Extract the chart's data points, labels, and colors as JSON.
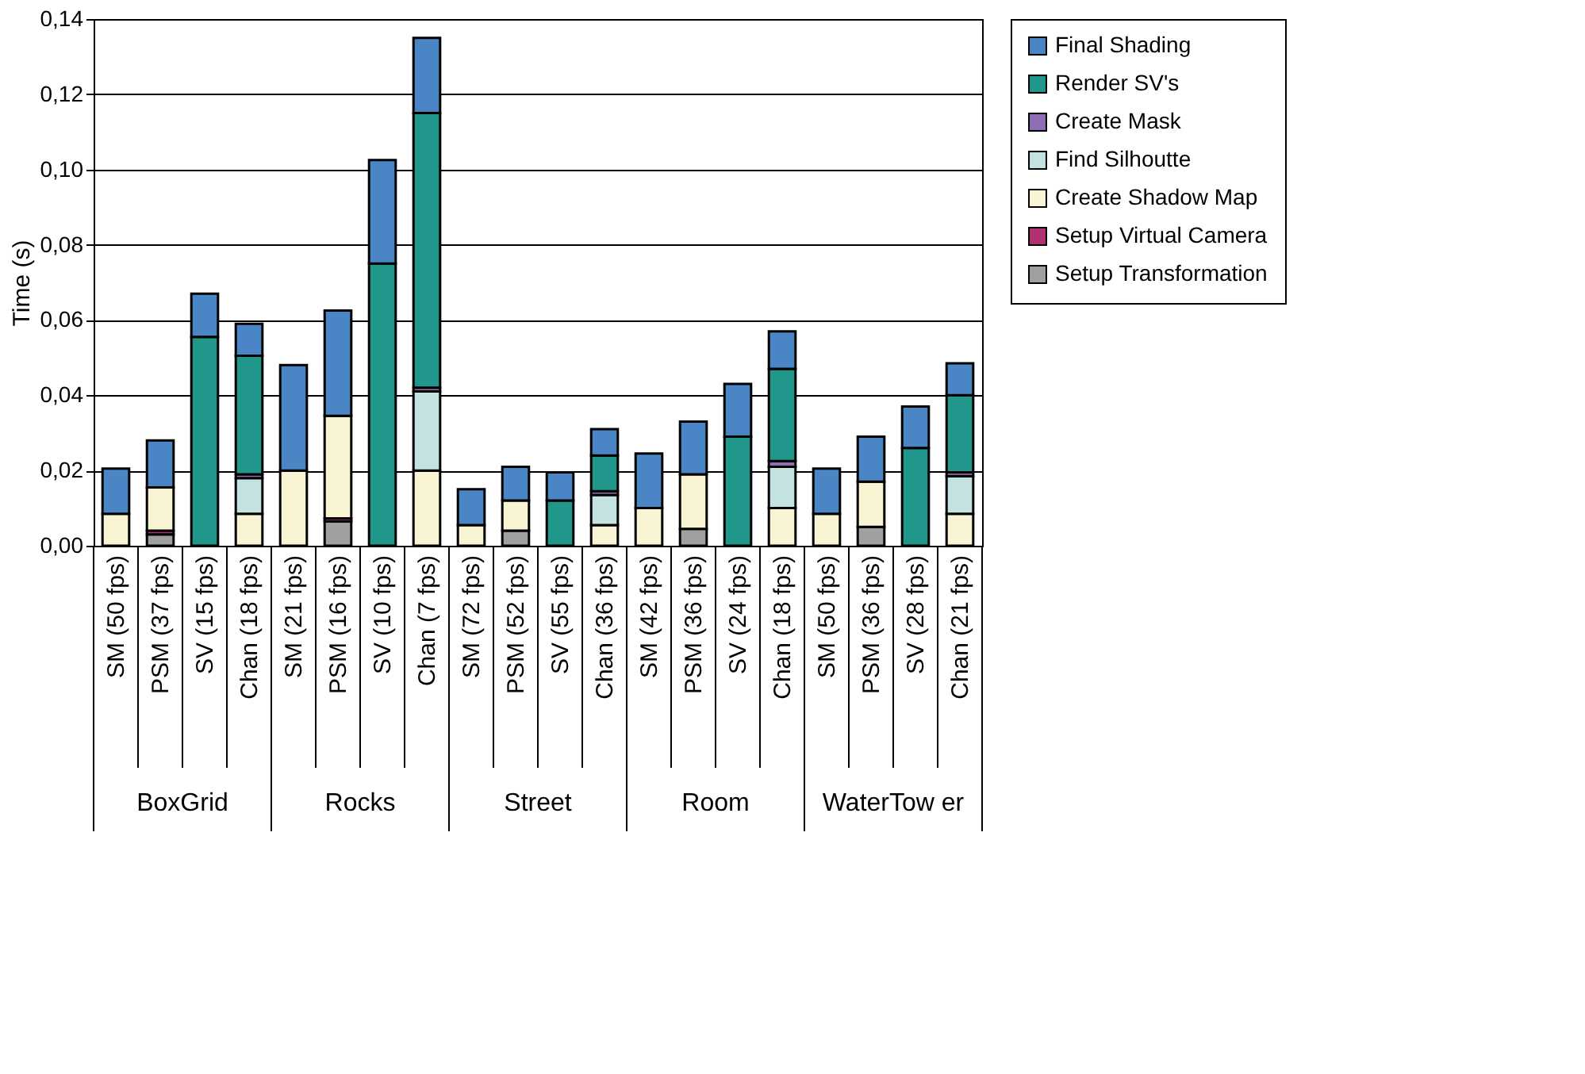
{
  "chart_data": {
    "type": "bar",
    "stacked": true,
    "ylabel": "Time (s)",
    "categories": [
      "SM (50 fps)",
      "PSM (37 fps)",
      "SV (15 fps)",
      "Chan (18 fps)",
      "SM (21 fps)",
      "PSM (16 fps)",
      "SV (10 fps)",
      "Chan (7 fps)",
      "SM (72 fps)",
      "PSM (52 fps)",
      "SV (55 fps)",
      "Chan (36 fps)",
      "SM (42 fps)",
      "PSM (36 fps)",
      "SV (24 fps)",
      "Chan (18 fps)",
      "SM (50 fps)",
      "PSM (36 fps)",
      "SV (28 fps)",
      "Chan (21 fps)"
    ],
    "annotations": [
      "BoxGrid",
      "Rocks",
      "Street",
      "Room",
      "WaterTow er"
    ],
    "series": [
      {
        "name": "Setup Transformation",
        "color": "#a0a0a0",
        "values": [
          null,
          0.003,
          null,
          null,
          null,
          0.0065,
          null,
          null,
          null,
          0.004,
          null,
          null,
          null,
          0.0045,
          null,
          null,
          null,
          0.005,
          null,
          null
        ]
      },
      {
        "name": "Setup Virtual Camera",
        "color": "#b03070",
        "values": [
          null,
          0.001,
          null,
          null,
          null,
          0.0008,
          null,
          null,
          null,
          null,
          null,
          null,
          null,
          null,
          null,
          null,
          null,
          null,
          null,
          null
        ]
      },
      {
        "name": "Create Shadow Map",
        "color": "#f8f4d4",
        "values": [
          0.0085,
          0.0115,
          null,
          0.0085,
          0.02,
          0.0272,
          null,
          0.02,
          0.0055,
          0.008,
          null,
          0.0055,
          0.01,
          0.0145,
          null,
          0.01,
          0.0085,
          0.012,
          null,
          0.0085
        ]
      },
      {
        "name": "Find Silhoutte",
        "color": "#c4e3e0",
        "values": [
          null,
          null,
          null,
          0.0095,
          null,
          null,
          null,
          0.021,
          null,
          null,
          null,
          0.008,
          null,
          null,
          null,
          0.011,
          null,
          null,
          null,
          0.01
        ]
      },
      {
        "name": "Create Mask",
        "color": "#8e6fb5",
        "values": [
          null,
          null,
          null,
          0.001,
          null,
          null,
          null,
          0.001,
          null,
          null,
          null,
          0.001,
          null,
          null,
          null,
          0.0015,
          null,
          null,
          null,
          0.001
        ]
      },
      {
        "name": "Render SV's",
        "color": "#21968b",
        "values": [
          null,
          null,
          0.0555,
          0.0315,
          null,
          null,
          0.075,
          0.073,
          null,
          null,
          0.012,
          0.0095,
          null,
          null,
          0.029,
          0.0245,
          null,
          null,
          0.026,
          0.0205
        ]
      },
      {
        "name": "Final Shading",
        "color": "#4a86c5",
        "values": [
          0.012,
          0.0125,
          0.0115,
          0.0085,
          0.028,
          0.028,
          0.0275,
          0.02,
          0.0095,
          0.009,
          0.0075,
          0.007,
          0.0145,
          0.014,
          0.014,
          0.01,
          0.012,
          0.012,
          0.011,
          0.0085
        ]
      }
    ],
    "ylim": [
      0,
      0.14
    ],
    "yticks": [
      {
        "value": 0,
        "label": "0,00"
      },
      {
        "value": 0.02,
        "label": "0,02"
      },
      {
        "value": 0.04,
        "label": "0,04"
      },
      {
        "value": 0.06,
        "label": "0,06"
      },
      {
        "value": 0.08,
        "label": "0,08"
      },
      {
        "value": 0.1,
        "label": "0,10"
      },
      {
        "value": 0.12,
        "label": "0,12"
      },
      {
        "value": 0.14,
        "label": "0,14"
      }
    ],
    "grid": "y",
    "legend": "right"
  }
}
